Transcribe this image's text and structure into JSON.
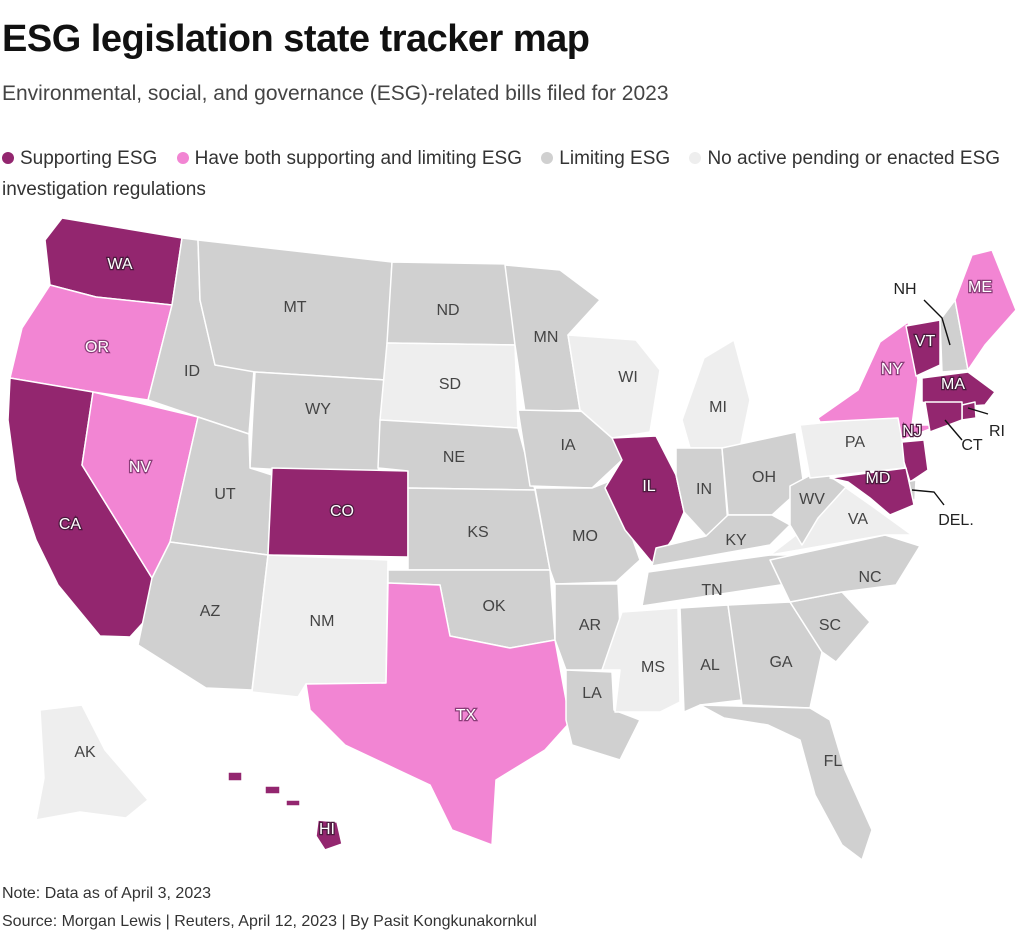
{
  "header": {
    "title": "ESG legislation state tracker map",
    "subtitle": "Environmental, social, and governance (ESG)-related bills filed for 2023"
  },
  "legend": [
    {
      "key": "supporting",
      "label": "Supporting ESG",
      "color": "#93266f"
    },
    {
      "key": "both",
      "label": "Have both supporting and limiting ESG",
      "color": "#f285d3"
    },
    {
      "key": "limiting",
      "label": "Limiting ESG",
      "color": "#d0d0d0"
    },
    {
      "key": "none",
      "label": "No active pending or enacted ESG investigation regulations",
      "color": "#eeeeee"
    }
  ],
  "states": {
    "WA": "supporting",
    "OR": "both",
    "CA": "supporting",
    "NV": "both",
    "ID": "limiting",
    "MT": "limiting",
    "WY": "limiting",
    "UT": "limiting",
    "AZ": "limiting",
    "CO": "supporting",
    "NM": "none",
    "ND": "limiting",
    "SD": "none",
    "NE": "limiting",
    "KS": "limiting",
    "OK": "limiting",
    "TX": "both",
    "MN": "limiting",
    "IA": "limiting",
    "MO": "limiting",
    "AR": "limiting",
    "LA": "limiting",
    "WI": "none",
    "IL": "supporting",
    "MI": "none",
    "IN": "limiting",
    "OH": "limiting",
    "KY": "limiting",
    "TN": "limiting",
    "MS": "none",
    "AL": "limiting",
    "GA": "limiting",
    "FL": "limiting",
    "SC": "limiting",
    "NC": "limiting",
    "VA": "none",
    "WV": "limiting",
    "PA": "none",
    "NY": "both",
    "VT": "supporting",
    "NH": "limiting",
    "ME": "both",
    "MA": "supporting",
    "RI": "supporting",
    "CT": "supporting",
    "NJ": "supporting",
    "DE": "limiting",
    "MD": "supporting",
    "AK": "none",
    "HI": "supporting"
  },
  "callouts": {
    "NH": "NH",
    "RI": "RI",
    "CT": "CT",
    "DE": "DEL."
  },
  "footer": {
    "note": "Note: Data as of April 3, 2023",
    "source": "Source: Morgan Lewis | Reuters, April 12, 2023 | By Pasit Kongkunakornkul"
  }
}
